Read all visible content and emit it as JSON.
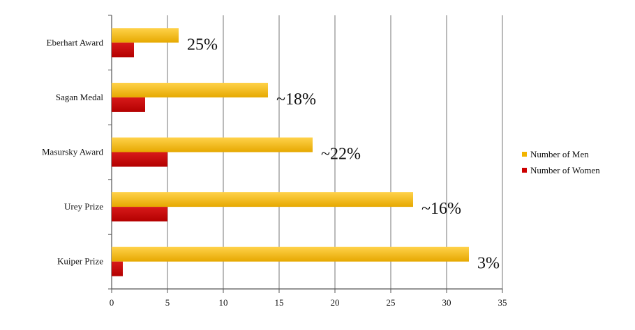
{
  "chart_data": {
    "type": "bar",
    "orientation": "horizontal",
    "title": "",
    "xlabel": "",
    "ylabel": "",
    "categories": [
      "Eberhart Award",
      "Sagan Medal",
      "Masursky Award",
      "Urey Prize",
      "Kuiper Prize"
    ],
    "series": [
      {
        "name": "Number of Men",
        "color": "#f2b400",
        "values": [
          6,
          14,
          18,
          27,
          32
        ]
      },
      {
        "name": "Number of Women",
        "color": "#cc0000",
        "values": [
          2,
          3,
          5,
          5,
          1
        ]
      }
    ],
    "annotations": [
      "25%",
      "~18%",
      "~22%",
      "~16%",
      "3%"
    ],
    "xlim": [
      0,
      35
    ],
    "xticks": [
      0,
      5,
      10,
      15,
      20,
      25,
      30,
      35
    ],
    "grid": true,
    "legend_position": "right"
  }
}
